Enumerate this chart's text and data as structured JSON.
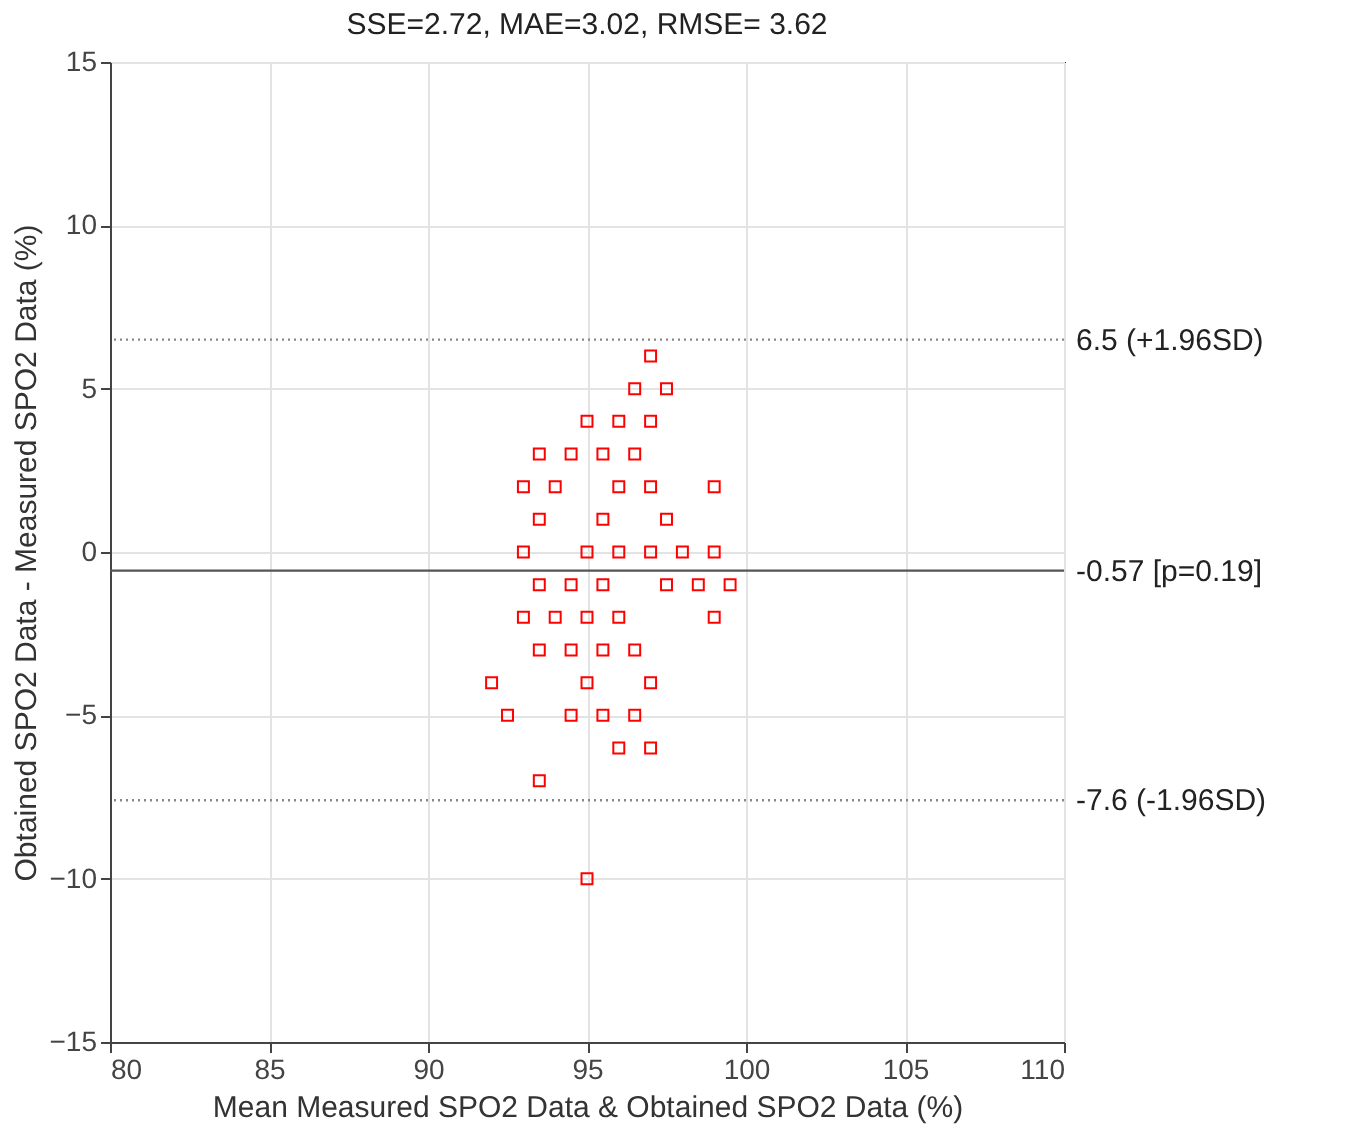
{
  "chart_data": {
    "type": "scatter",
    "title": "SSE=2.72,        MAE=3.02,          RMSE= 3.62",
    "xlabel": "Mean Measured SPO2 Data & Obtained SPO2 Data (%)",
    "ylabel": "Obtained SPO2 Data - Measured SPO2 Data (%)",
    "xlim": [
      80,
      110
    ],
    "xticks": [
      80,
      85,
      90,
      95,
      100,
      105,
      110
    ],
    "ylim": [
      -15,
      15
    ],
    "yticks": [
      -15,
      -10,
      -5,
      0,
      5,
      10,
      15
    ],
    "grid": true,
    "marker": "square",
    "series": [
      {
        "color": "#ff0000",
        "x": [
          97,
          96.5,
          97.5,
          95,
          96,
          97,
          93.5,
          94.5,
          95.5,
          96.5,
          93,
          94,
          96,
          97,
          99,
          93.5,
          95.5,
          97.5,
          93,
          95,
          96,
          97,
          98,
          99,
          93.5,
          94.5,
          95.5,
          97.5,
          98.5,
          99.5,
          93,
          94,
          95,
          96,
          99,
          93.5,
          94.5,
          95.5,
          96.5,
          92,
          95,
          97,
          92.5,
          94.5,
          95.5,
          96.5,
          96,
          97,
          93.5,
          95
        ],
        "values": [
          6,
          5,
          5,
          4,
          4,
          4,
          3,
          3,
          3,
          3,
          2,
          2,
          2,
          2,
          2,
          1,
          1,
          1,
          0,
          0,
          0,
          0,
          0,
          0,
          -1,
          -1,
          -1,
          -1,
          -1,
          -1,
          -2,
          -2,
          -2,
          -2,
          -2,
          -3,
          -3,
          -3,
          -3,
          -4,
          -4,
          -4,
          -5,
          -5,
          -5,
          -5,
          -6,
          -6,
          -7,
          -10
        ]
      }
    ],
    "ref_lines": [
      {
        "axis": "y",
        "value": 6.5,
        "label": "6.5 (+1.96SD)",
        "line_style": "dotted",
        "color": "#888888"
      },
      {
        "axis": "y",
        "value": -0.57,
        "label": "-0.57 [p=0.19]",
        "line_style": "solid",
        "color": "#555555"
      },
      {
        "axis": "y",
        "value": -7.6,
        "label": "-7.6 (-1.96SD)",
        "line_style": "dotted",
        "color": "#888888"
      }
    ]
  }
}
